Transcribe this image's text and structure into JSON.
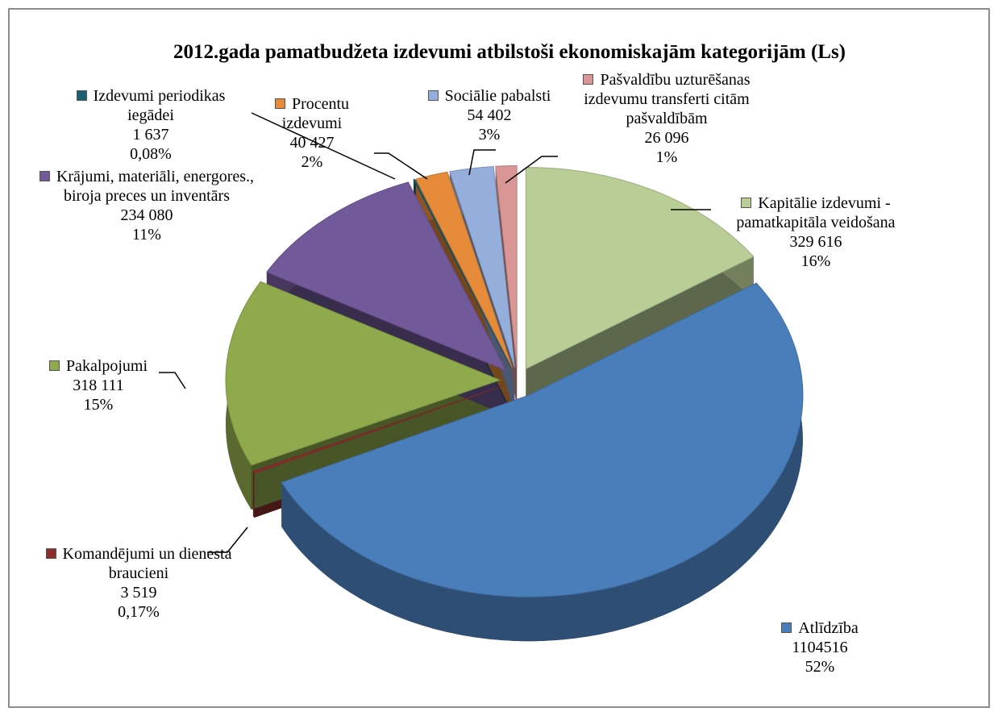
{
  "chart_data": {
    "type": "pie",
    "title": "2012.gada pamatbudžeta izdevumi atbilstoši ekonomiskajām kategorijām (Ls)",
    "categories": [
      "Kapitālie izdevumi - pamatkapitāla veidošana",
      "Atlīdzība",
      "Komandējumi un dienesta braucieni",
      "Pakalpojumi",
      "Krājumi, materiāli, energores., biroja preces un inventārs",
      "Izdevumi periodikas iegādei",
      "Procentu izdevumi",
      "Sociālie pabalsti",
      "Pašvaldību uzturēšanas izdevumu transferti citām pašvaldībām"
    ],
    "values": [
      329616,
      1104516,
      3519,
      318111,
      234080,
      1637,
      40427,
      54402,
      26096
    ],
    "value_labels": [
      "329 616",
      "1104516",
      "3 519",
      "318 111",
      "234 080",
      "1 637",
      "40 427",
      "54 402",
      "26 096"
    ],
    "percent_labels": [
      "16%",
      "52%",
      "0,17%",
      "15%",
      "11%",
      "0,08%",
      "2%",
      "3%",
      "1%"
    ],
    "colors": [
      "#b9cd96",
      "#4a7ebb",
      "#8b2e2e",
      "#8faa4c",
      "#72599a",
      "#1b5f70",
      "#e58b3a",
      "#95aedc",
      "#d99694"
    ]
  }
}
